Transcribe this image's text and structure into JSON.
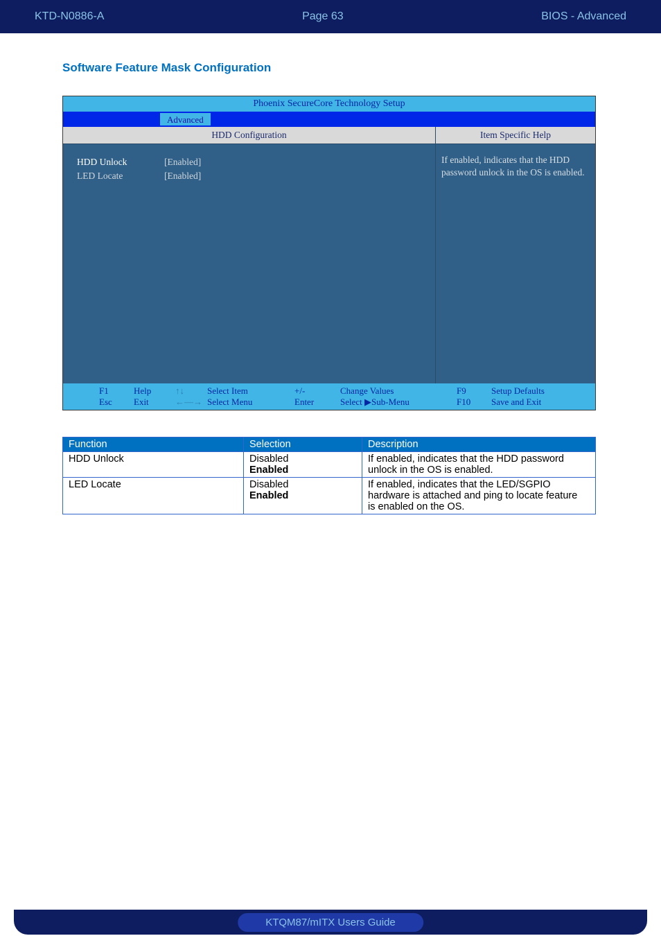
{
  "header": {
    "left": "KTD-N0886-A",
    "center": "Page 63",
    "right": "BIOS  - Advanced"
  },
  "section_title": "Software Feature Mask Configuration",
  "bios": {
    "title": "Phoenix SecureCore Technology Setup",
    "tab": "Advanced",
    "left_header": "HDD Configuration",
    "right_header": "Item Specific Help",
    "help_line1": "If enabled, indicates that the HDD",
    "help_line2": "password unlock in the OS is enabled.",
    "rows": {
      "r0": {
        "label": "HDD Unlock",
        "value": "[Enabled]"
      },
      "r1": {
        "label": "LED Locate",
        "value": "[Enabled]"
      }
    },
    "footer": {
      "f1": "F1",
      "help": "Help",
      "updn": "↑↓",
      "sel_item": "Select Item",
      "pm": "+/-",
      "chg": "Change Values",
      "f9": "F9",
      "defaults": "Setup Defaults",
      "esc": "Esc",
      "exit": "Exit",
      "lr": "←—→",
      "sel_menu": "Select Menu",
      "enter": "Enter",
      "sub": "Select ▶Sub-Menu",
      "f10": "F10",
      "save": "Save and Exit"
    }
  },
  "table": {
    "headers": {
      "fn": "Function",
      "sel": "Selection",
      "desc": "Description"
    },
    "rows": {
      "r0": {
        "fn": "HDD Unlock",
        "sel1": "Disabled",
        "sel2": "Enabled",
        "desc1": "If enabled, indicates that the HDD password",
        "desc2": "unlock in the OS is enabled."
      },
      "r1": {
        "fn": "LED Locate",
        "sel1": "Disabled",
        "sel2": "Enabled",
        "desc1": "If enabled, indicates that the LED/SGPIO",
        "desc2": "hardware is attached and ping to locate  feature",
        "desc3": "is enabled on the OS."
      }
    }
  },
  "footer_text": "KTQM87/mITX Users Guide"
}
